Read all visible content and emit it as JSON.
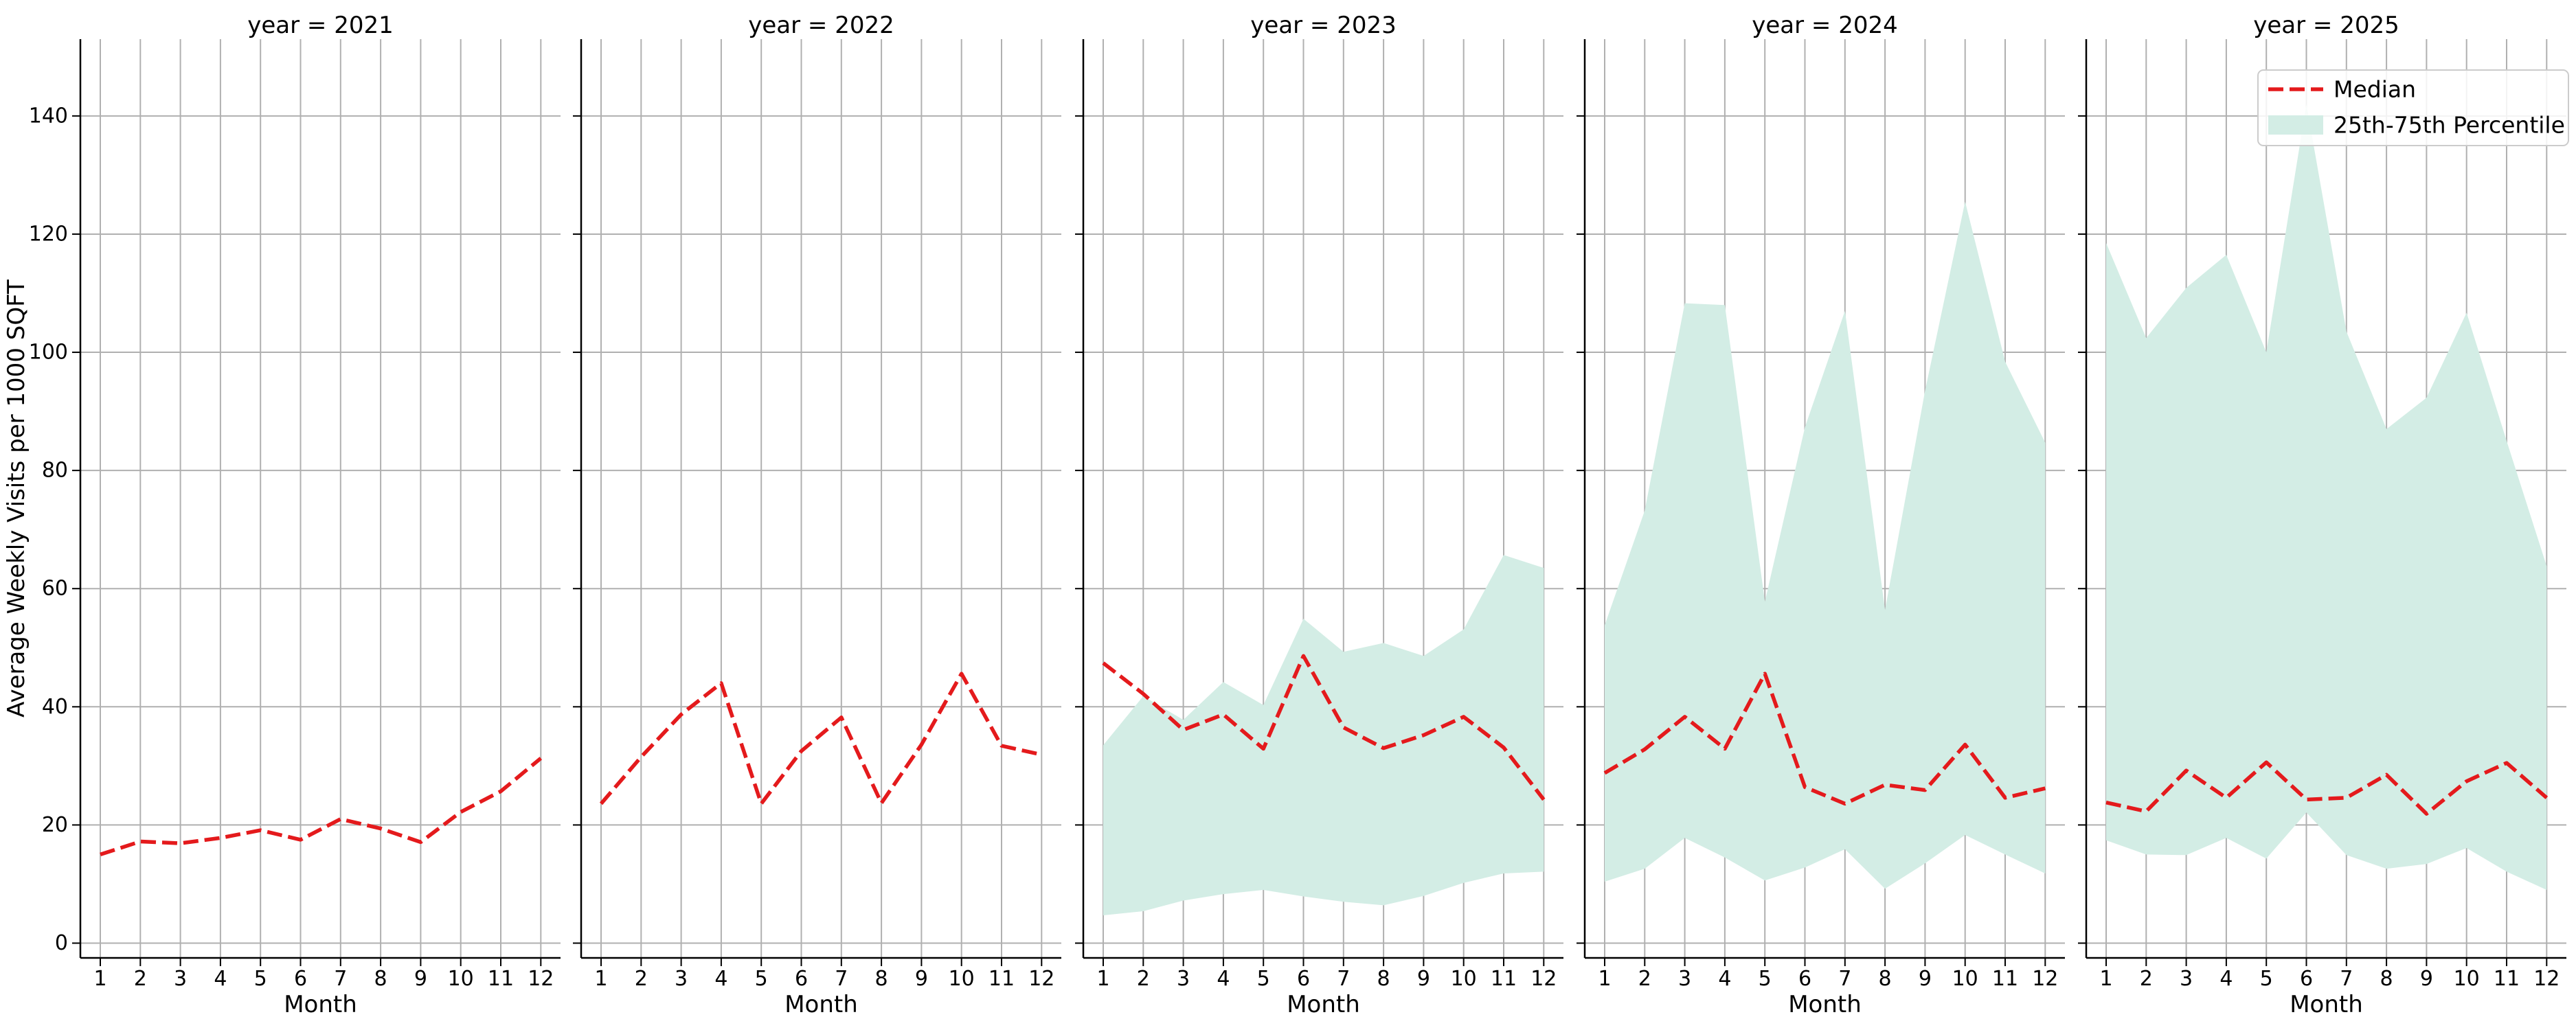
{
  "colors": {
    "median": "#e41a1c",
    "band": "#d3ede5",
    "grid": "#b0b0b0",
    "axis": "#000000",
    "background": "#ffffff"
  },
  "chart_data": {
    "type": "line",
    "layout": "facet-grid",
    "facet_by": "year",
    "ylabel": "Average Weekly Visits per 1000 SQFT",
    "xlabel": "Month",
    "ylim": [
      -2.5,
      153
    ],
    "yticks": [
      0,
      20,
      40,
      60,
      80,
      100,
      120,
      140
    ],
    "xticks": [
      1,
      2,
      3,
      4,
      5,
      6,
      7,
      8,
      9,
      10,
      11,
      12
    ],
    "grid": true,
    "legend": {
      "placement": "top-right",
      "median_label": "Median",
      "band_label": "25th-75th Percentile"
    },
    "panels": [
      {
        "title": "year = 2021",
        "x": [
          1,
          2,
          3,
          4,
          5,
          6,
          7,
          8,
          9,
          10,
          11,
          12
        ],
        "median": [
          15.0,
          17.2,
          16.9,
          17.8,
          19.1,
          17.5,
          21.0,
          19.4,
          17.1,
          22.2,
          25.7,
          31.3
        ],
        "p25": [],
        "p75": []
      },
      {
        "title": "year = 2022",
        "x": [
          1,
          2,
          3,
          4,
          5,
          6,
          7,
          8,
          9,
          10,
          11,
          12
        ],
        "median": [
          23.6,
          31.5,
          38.7,
          44.0,
          23.6,
          32.5,
          38.2,
          23.7,
          33.6,
          45.6,
          33.4,
          31.9
        ],
        "p25": [],
        "p75": []
      },
      {
        "title": "year = 2023",
        "x": [
          1,
          2,
          3,
          4,
          5,
          6,
          7,
          8,
          9,
          10,
          11,
          12
        ],
        "median": [
          47.4,
          42.2,
          36.1,
          38.7,
          32.9,
          48.6,
          36.5,
          33.0,
          35.2,
          38.3,
          33.1,
          24.3
        ],
        "p25": [
          4.7,
          5.4,
          7.2,
          8.3,
          9.0,
          7.9,
          7.0,
          6.4,
          8.0,
          10.2,
          11.8,
          12.1
        ],
        "p75": [
          33.5,
          41.8,
          37.8,
          44.2,
          40.3,
          54.9,
          49.3,
          50.8,
          48.6,
          53.1,
          65.7,
          63.5
        ]
      },
      {
        "title": "year = 2024",
        "x": [
          1,
          2,
          3,
          4,
          5,
          6,
          7,
          8,
          9,
          10,
          11,
          12
        ],
        "median": [
          28.8,
          32.8,
          38.3,
          32.9,
          45.6,
          26.4,
          23.6,
          26.8,
          25.9,
          33.6,
          24.6,
          26.2
        ],
        "p25": [
          10.4,
          12.6,
          17.8,
          14.5,
          10.6,
          12.8,
          15.9,
          9.2,
          13.5,
          18.3,
          15.0,
          11.8
        ],
        "p75": [
          53.8,
          73.2,
          108.3,
          108.0,
          57.8,
          87.3,
          107.0,
          56.4,
          93.5,
          125.5,
          98.4,
          84.7
        ]
      },
      {
        "title": "year = 2025",
        "x": [
          1,
          2,
          3,
          4,
          5,
          6,
          7,
          8,
          9,
          10,
          11,
          12
        ],
        "median": [
          23.8,
          22.3,
          29.2,
          24.6,
          30.6,
          24.3,
          24.6,
          28.5,
          21.9,
          27.4,
          30.5,
          24.6
        ],
        "p25": [
          17.4,
          15.0,
          14.9,
          17.8,
          14.3,
          22.1,
          14.9,
          12.6,
          13.4,
          16.1,
          12.1,
          9.0
        ],
        "p75": [
          118.5,
          102.4,
          110.9,
          116.5,
          100.0,
          142.0,
          103.5,
          87.0,
          92.3,
          106.7,
          85.0,
          63.8
        ]
      }
    ]
  }
}
